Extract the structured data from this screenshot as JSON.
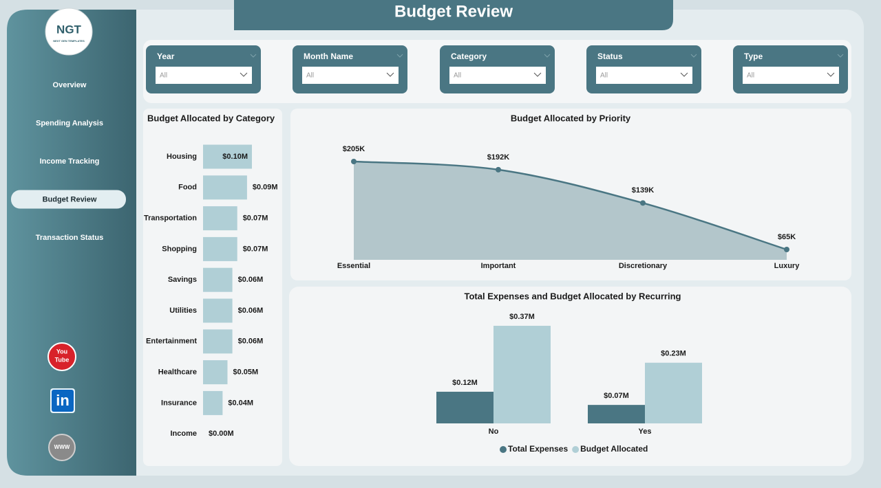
{
  "header": {
    "title": "Budget Review"
  },
  "logo": {
    "text": "NGT",
    "tagline": "NEXT GEN TEMPLATES"
  },
  "nav": [
    "Overview",
    "Spending Analysis",
    "Income Tracking",
    "Budget Review",
    "Transaction Status"
  ],
  "active_nav": "Budget Review",
  "filters": [
    {
      "label": "Year",
      "value": "All"
    },
    {
      "label": "Month Name",
      "value": "All"
    },
    {
      "label": "Category",
      "value": "All"
    },
    {
      "label": "Status",
      "value": "All"
    },
    {
      "label": "Type",
      "value": "All"
    }
  ],
  "social": {
    "youtube": [
      "You",
      "Tube"
    ],
    "linkedin": "in",
    "web": "WWW"
  },
  "chart_data": [
    {
      "type": "hbar",
      "title": "Budget Allocated by Category",
      "categories": [
        "Housing",
        "Food",
        "Transportation",
        "Shopping",
        "Savings",
        "Utilities",
        "Entertainment",
        "Healthcare",
        "Insurance",
        "Income"
      ],
      "values": [
        0.1,
        0.09,
        0.07,
        0.07,
        0.06,
        0.06,
        0.06,
        0.05,
        0.04,
        0.0
      ],
      "value_labels": [
        "$0.10M",
        "$0.09M",
        "$0.07M",
        "$0.07M",
        "$0.06M",
        "$0.06M",
        "$0.06M",
        "$0.05M",
        "$0.04M",
        "$0.00M"
      ],
      "color": "#b0cfd6"
    },
    {
      "type": "area",
      "title": "Budget Allocated by Priority",
      "categories": [
        "Essential",
        "Important",
        "Discretionary",
        "Luxury"
      ],
      "values": [
        205,
        192,
        139,
        65
      ],
      "value_labels": [
        "$205K",
        "$192K",
        "$139K",
        "$65K"
      ],
      "color": "#4a7683",
      "fill_color": "#b3c6cb"
    },
    {
      "type": "grouped_bar",
      "title": "Total Expenses and Budget Allocated by Recurring",
      "categories": [
        "No",
        "Yes"
      ],
      "series": [
        {
          "name": "Total Expenses",
          "color": "#4a7683",
          "values": [
            0.12,
            0.07
          ],
          "value_labels": [
            "$0.12M",
            "$0.07M"
          ]
        },
        {
          "name": "Budget Allocated",
          "color": "#b0cfd6",
          "values": [
            0.37,
            0.23
          ],
          "value_labels": [
            "$0.37M",
            "$0.23M"
          ]
        }
      ],
      "legend": "bottom"
    }
  ]
}
